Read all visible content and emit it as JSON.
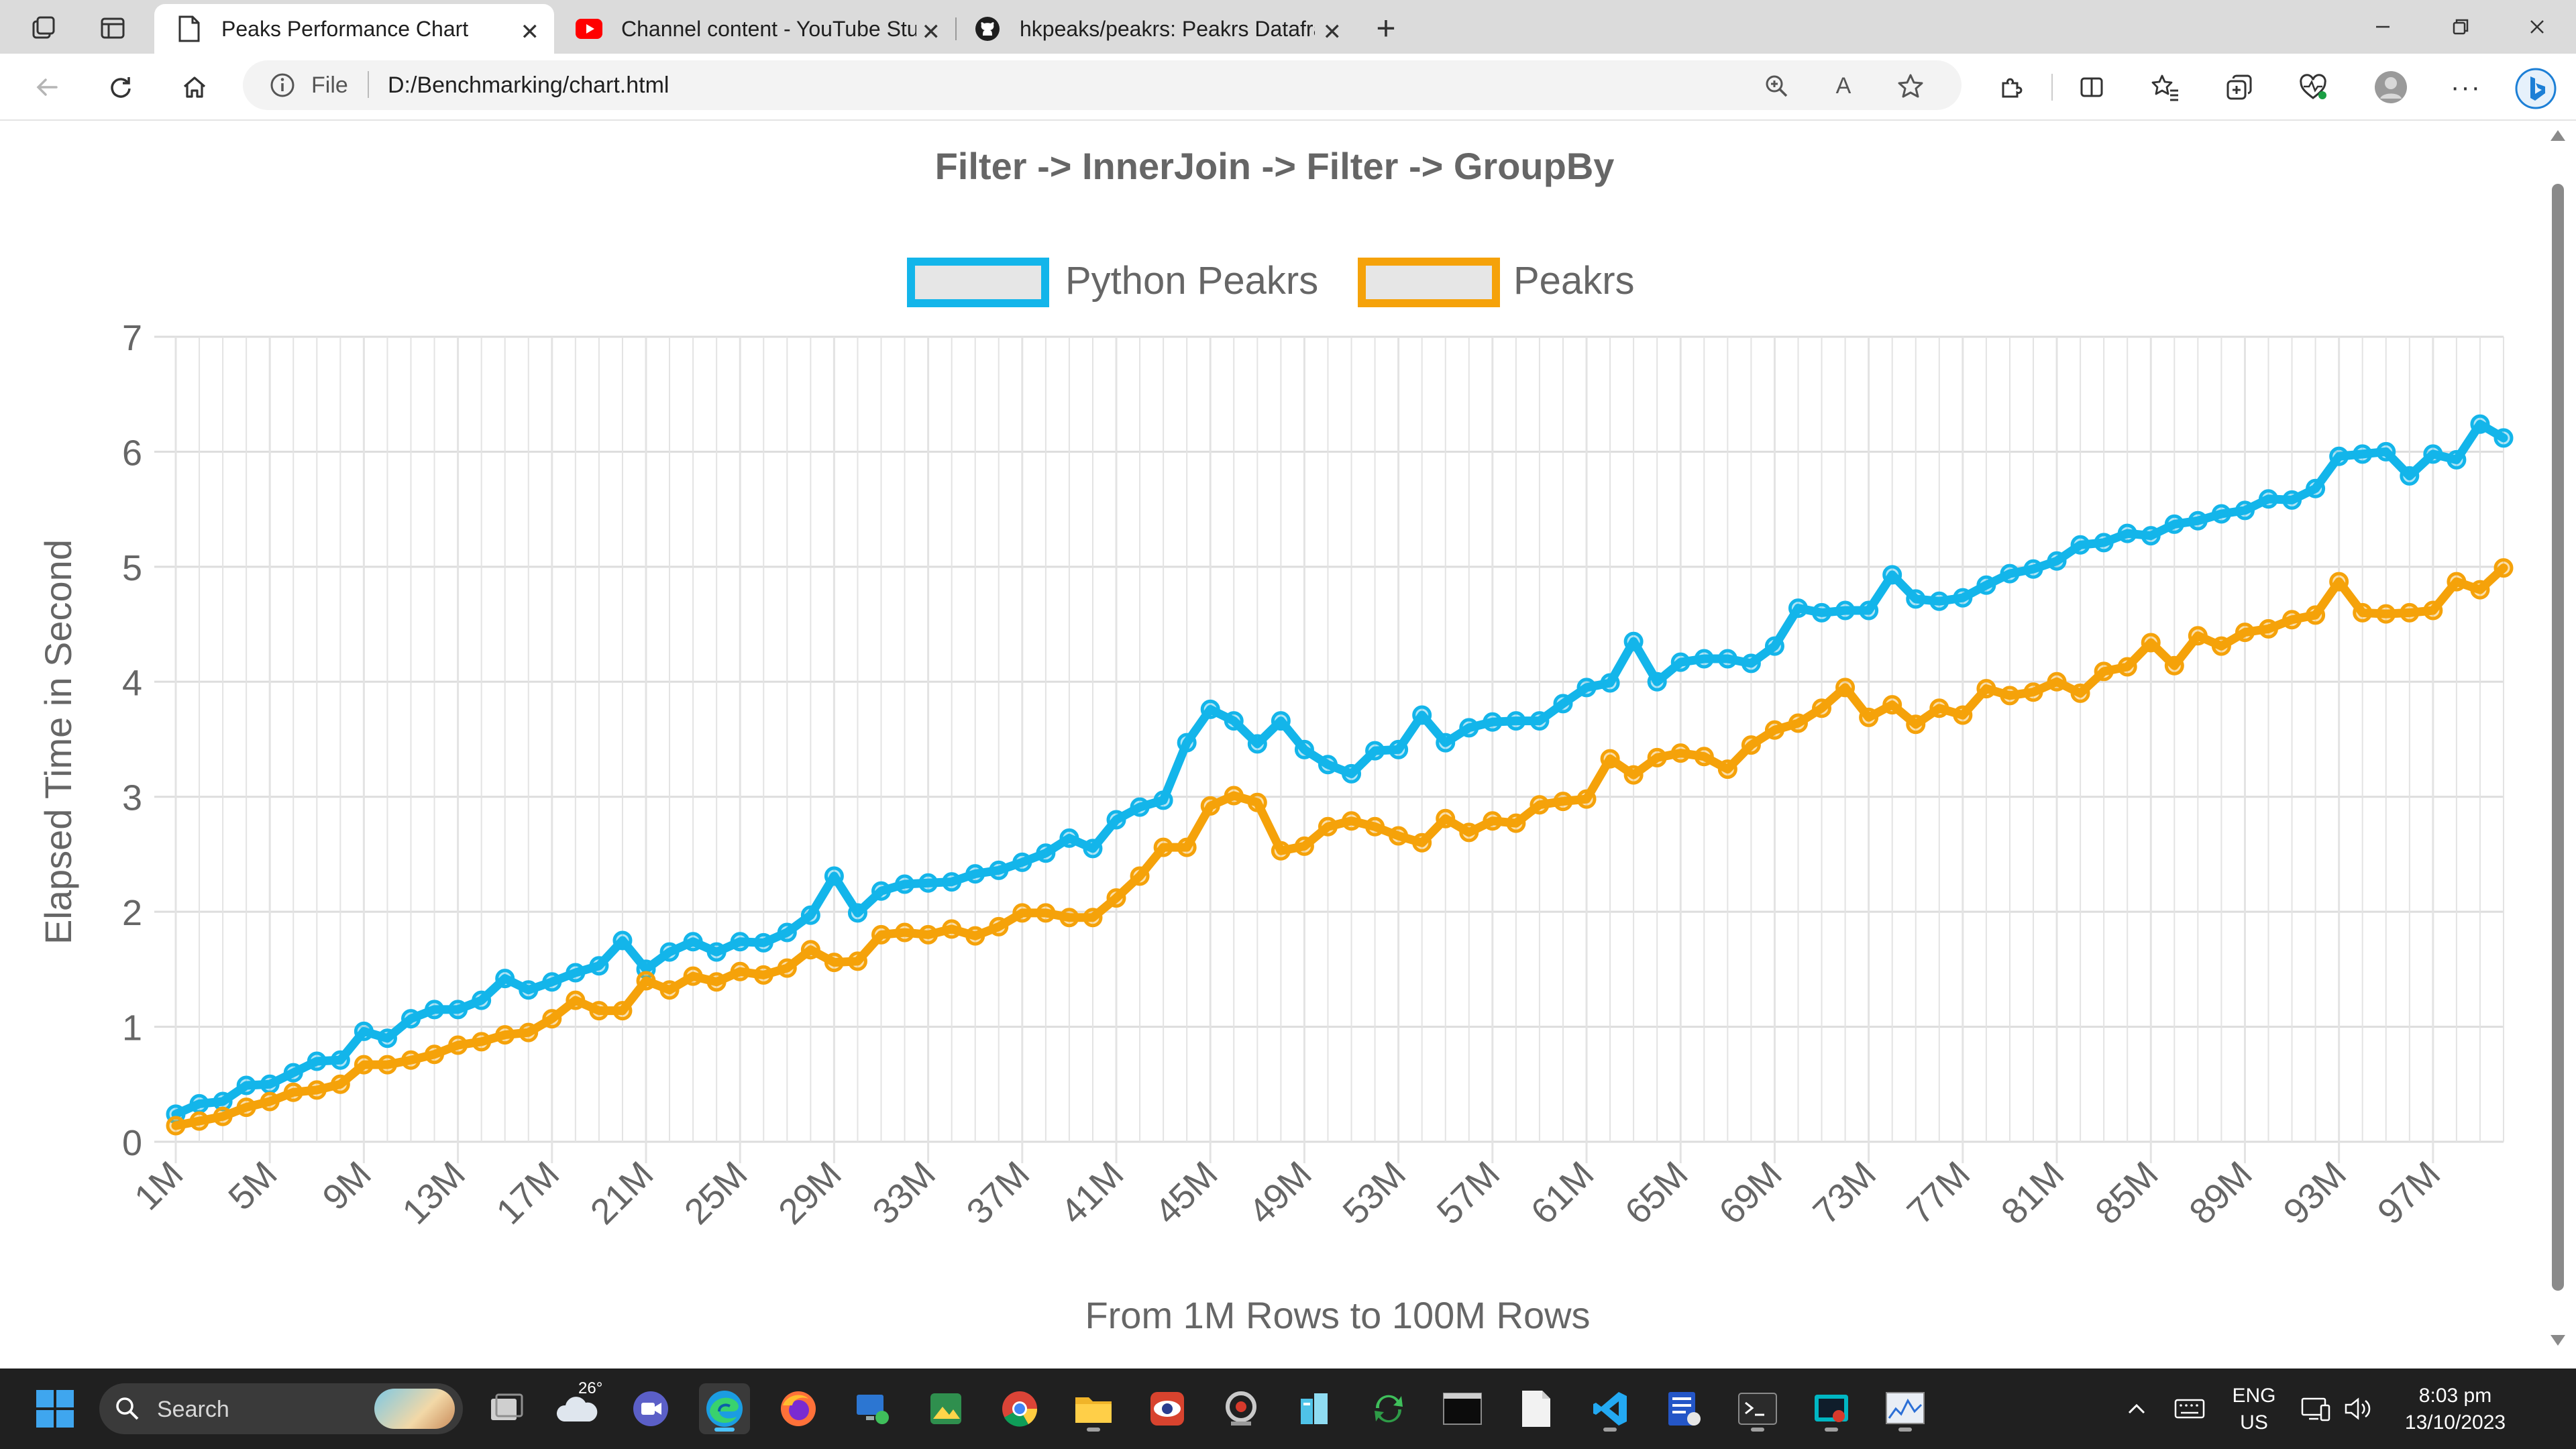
{
  "browser": {
    "tabs": [
      {
        "title": "Peaks Performance Chart",
        "icon": "page-icon",
        "active": true
      },
      {
        "title": "Channel content - YouTube Studi",
        "icon": "youtube-icon",
        "active": false
      },
      {
        "title": "hkpeaks/peakrs: Peakrs Datafram",
        "icon": "github-icon",
        "active": false
      }
    ],
    "address": {
      "protocol_label": "File",
      "url": "D:/Benchmarking/chart.html"
    }
  },
  "chart_data": {
    "type": "line",
    "title": "Filter -> InnerJoin -> Filter -> GroupBy",
    "xlabel": "From 1M Rows to 100M Rows",
    "ylabel": "Elapsed Time in Second",
    "ylim": [
      0,
      7
    ],
    "yticks": [
      "0",
      "1",
      "2",
      "3",
      "4",
      "5",
      "6",
      "7"
    ],
    "x_tick_labels": [
      "1M",
      "5M",
      "9M",
      "13M",
      "17M",
      "21M",
      "25M",
      "29M",
      "33M",
      "37M",
      "41M",
      "45M",
      "49M",
      "53M",
      "57M",
      "61M",
      "65M",
      "69M",
      "73M",
      "77M",
      "81M",
      "85M",
      "89M",
      "93M",
      "97M"
    ],
    "x_tick_every": 4,
    "grid": true,
    "legend_position": "top-center",
    "series": [
      {
        "name": "Python Peakrs",
        "color": "#13b5ea",
        "values": [
          0.24,
          0.33,
          0.35,
          0.49,
          0.5,
          0.6,
          0.7,
          0.71,
          0.96,
          0.9,
          1.07,
          1.15,
          1.15,
          1.23,
          1.42,
          1.32,
          1.39,
          1.47,
          1.53,
          1.75,
          1.5,
          1.65,
          1.74,
          1.65,
          1.74,
          1.73,
          1.82,
          1.97,
          2.31,
          1.99,
          2.18,
          2.24,
          2.25,
          2.26,
          2.33,
          2.36,
          2.43,
          2.51,
          2.64,
          2.55,
          2.8,
          2.91,
          2.97,
          3.47,
          3.76,
          3.66,
          3.46,
          3.66,
          3.41,
          3.28,
          3.2,
          3.4,
          3.41,
          3.71,
          3.47,
          3.6,
          3.65,
          3.66,
          3.66,
          3.81,
          3.95,
          3.99,
          4.35,
          4.0,
          4.17,
          4.2,
          4.2,
          4.16,
          4.31,
          4.64,
          4.6,
          4.62,
          4.62,
          4.93,
          4.72,
          4.7,
          4.73,
          4.84,
          4.94,
          4.98,
          5.05,
          5.19,
          5.21,
          5.29,
          5.27,
          5.37,
          5.4,
          5.46,
          5.49,
          5.59,
          5.58,
          5.68,
          5.96,
          5.98,
          6.0,
          5.79,
          5.98,
          5.93,
          6.24,
          6.12
        ]
      },
      {
        "name": "Peakrs",
        "color": "#f5a20a",
        "values": [
          0.14,
          0.18,
          0.22,
          0.3,
          0.35,
          0.43,
          0.45,
          0.5,
          0.67,
          0.67,
          0.71,
          0.76,
          0.84,
          0.87,
          0.93,
          0.95,
          1.07,
          1.23,
          1.14,
          1.14,
          1.4,
          1.32,
          1.44,
          1.39,
          1.48,
          1.45,
          1.51,
          1.67,
          1.56,
          1.57,
          1.8,
          1.82,
          1.8,
          1.85,
          1.79,
          1.87,
          1.99,
          1.99,
          1.95,
          1.95,
          2.12,
          2.31,
          2.56,
          2.56,
          2.92,
          3.01,
          2.95,
          2.53,
          2.57,
          2.74,
          2.79,
          2.74,
          2.66,
          2.6,
          2.81,
          2.69,
          2.79,
          2.77,
          2.93,
          2.96,
          2.98,
          3.33,
          3.19,
          3.34,
          3.38,
          3.35,
          3.24,
          3.45,
          3.58,
          3.64,
          3.77,
          3.95,
          3.69,
          3.8,
          3.63,
          3.77,
          3.71,
          3.94,
          3.88,
          3.91,
          4.0,
          3.9,
          4.09,
          4.13,
          4.34,
          4.14,
          4.4,
          4.31,
          4.43,
          4.46,
          4.54,
          4.58,
          4.87,
          4.6,
          4.59,
          4.6,
          4.62,
          4.87,
          4.8,
          4.99
        ]
      }
    ]
  },
  "taskbar": {
    "search_placeholder": "Search",
    "weather_temp": "26°",
    "language": "ENG",
    "region": "US",
    "time": "8:03 pm",
    "date": "13/10/2023"
  }
}
